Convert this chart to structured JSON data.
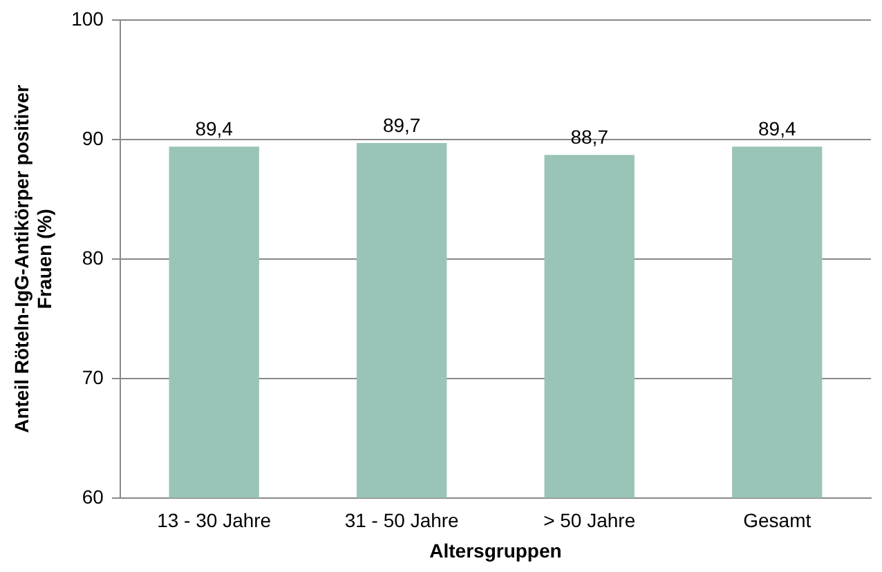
{
  "chart_data": {
    "type": "bar",
    "xlabel": "Altersgruppen",
    "ylabel": "Anteil Röteln-IgG-Antikörper positiver Frauen (%)",
    "categories": [
      "13 - 30 Jahre",
      "31 - 50 Jahre",
      "> 50 Jahre",
      "Gesamt"
    ],
    "values": [
      89.4,
      89.7,
      88.7,
      89.4
    ],
    "color": "#9bc4b8",
    "value_labels": [
      "89,4",
      "89,7",
      "88,7",
      "89,4"
    ],
    "ylim": [
      60,
      100
    ],
    "yticks": [
      60,
      70,
      80,
      90,
      100
    ],
    "grid": "y",
    "legend": false
  }
}
